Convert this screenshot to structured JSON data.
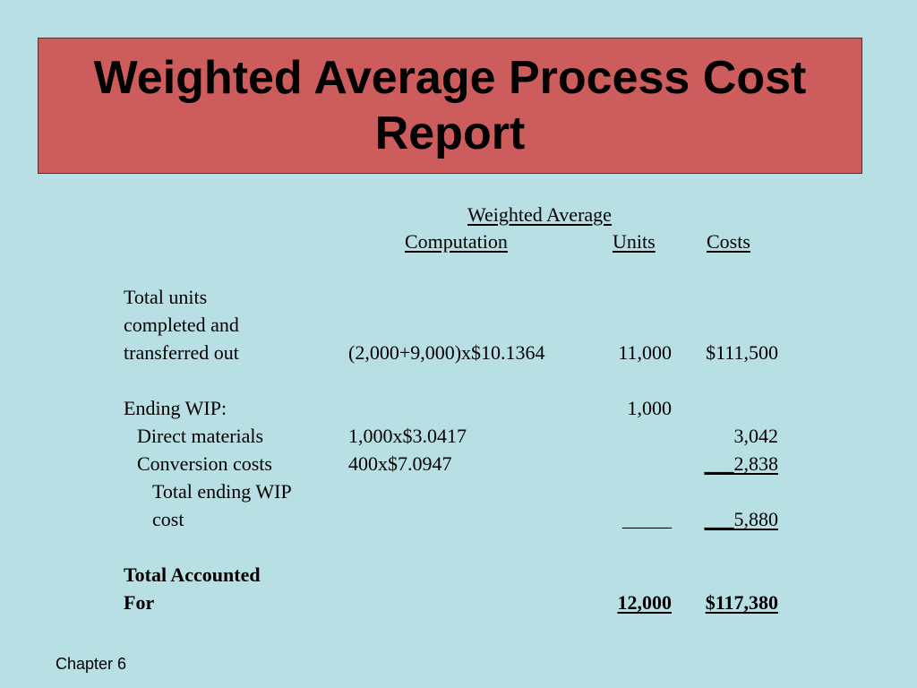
{
  "slide": {
    "title_line1": "Weighted Average Process Cost",
    "title_line2": "Report",
    "footer": "Chapter 6"
  },
  "table": {
    "group_header": "Weighted Average",
    "headers": {
      "computation": "Computation",
      "units": "Units",
      "costs": "Costs"
    },
    "completed": {
      "label_line1": "Total units",
      "label_line2": "completed and",
      "label_line3": "transferred out",
      "computation": "(2,000+9,000)x$10.1364",
      "units": "11,000",
      "costs": "$111,500"
    },
    "ending_wip": {
      "label": "Ending WIP:",
      "units": "1,000"
    },
    "direct_materials": {
      "label": "Direct materials",
      "computation": "1,000x$3.0417",
      "costs": "3,042"
    },
    "conversion_costs": {
      "label": "Conversion costs",
      "computation": "400x$7.0947",
      "costs": "___2,838"
    },
    "total_ending_wip": {
      "label_line1": "Total ending WIP",
      "label_line2": "cost",
      "units": "_____",
      "costs": "___5,880"
    },
    "total_accounted": {
      "label_line1": "Total Accounted",
      "label_line2": "For",
      "units": "12,000",
      "costs": "$117,380"
    }
  }
}
